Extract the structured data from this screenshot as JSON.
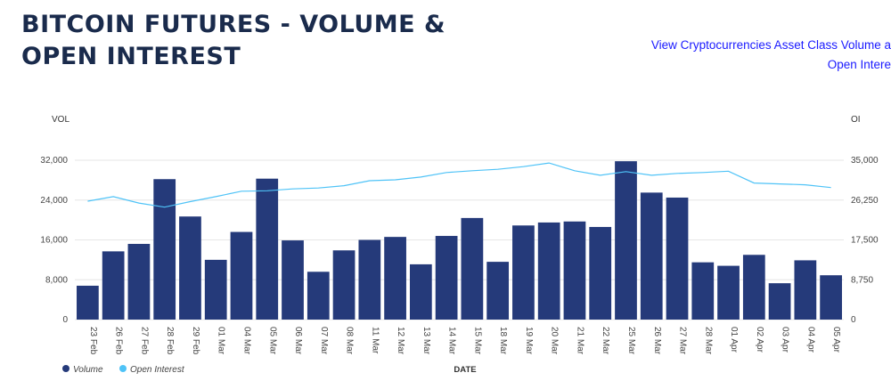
{
  "header": {
    "title": "BITCOIN FUTURES - VOLUME & OPEN INTEREST",
    "link_line1": "View Cryptocurrencies Asset Class Volume a",
    "link_line2": "Open Intere"
  },
  "colors": {
    "volume": "#253a7a",
    "open_interest": "#4fc3f7",
    "grid": "#e6e6e6"
  },
  "chart_data": {
    "type": "bar",
    "xlabel": "DATE",
    "ylabel": "VOL",
    "y2label": "OI",
    "ylim": [
      0,
      32000
    ],
    "y2lim": [
      0,
      35000
    ],
    "yticks": [
      "0",
      "8,000",
      "16,000",
      "24,000",
      "32,000"
    ],
    "y2ticks": [
      "0",
      "8,750",
      "17,500",
      "26,250",
      "35,000"
    ],
    "grid": true,
    "legend_position": "bottom-left",
    "categories": [
      "23 Feb",
      "26 Feb",
      "27 Feb",
      "28 Feb",
      "29 Feb",
      "01 Mar",
      "04 Mar",
      "05 Mar",
      "06 Mar",
      "07 Mar",
      "08 Mar",
      "11 Mar",
      "12 Mar",
      "13 Mar",
      "14 Mar",
      "15 Mar",
      "18 Mar",
      "19 Mar",
      "20 Mar",
      "21 Mar",
      "22 Mar",
      "25 Mar",
      "26 Mar",
      "27 Mar",
      "28 Mar",
      "01 Apr",
      "02 Apr",
      "03 Apr",
      "04 Apr",
      "05 Apr"
    ],
    "series": [
      {
        "name": "Volume",
        "kind": "bar",
        "values": [
          6800,
          13700,
          15200,
          28200,
          20700,
          12000,
          17600,
          28300,
          15900,
          9600,
          13900,
          16000,
          16600,
          11100,
          16800,
          20400,
          11600,
          18900,
          19500,
          19700,
          18600,
          31800,
          25500,
          24500,
          11500,
          10800,
          13000,
          7300,
          11900,
          8900
        ]
      },
      {
        "name": "Open Interest",
        "kind": "line",
        "axis": "right",
        "values": [
          26000,
          27000,
          25600,
          24700,
          25900,
          27000,
          28200,
          28300,
          28700,
          28900,
          29400,
          30500,
          30700,
          31300,
          32300,
          32700,
          33000,
          33600,
          34400,
          32700,
          31700,
          32500,
          31700,
          32100,
          32300,
          32600,
          30000,
          29800,
          29600,
          29000
        ]
      }
    ]
  },
  "legend": [
    {
      "label": "Volume",
      "color": "#253a7a"
    },
    {
      "label": "Open Interest",
      "color": "#4fc3f7"
    }
  ]
}
